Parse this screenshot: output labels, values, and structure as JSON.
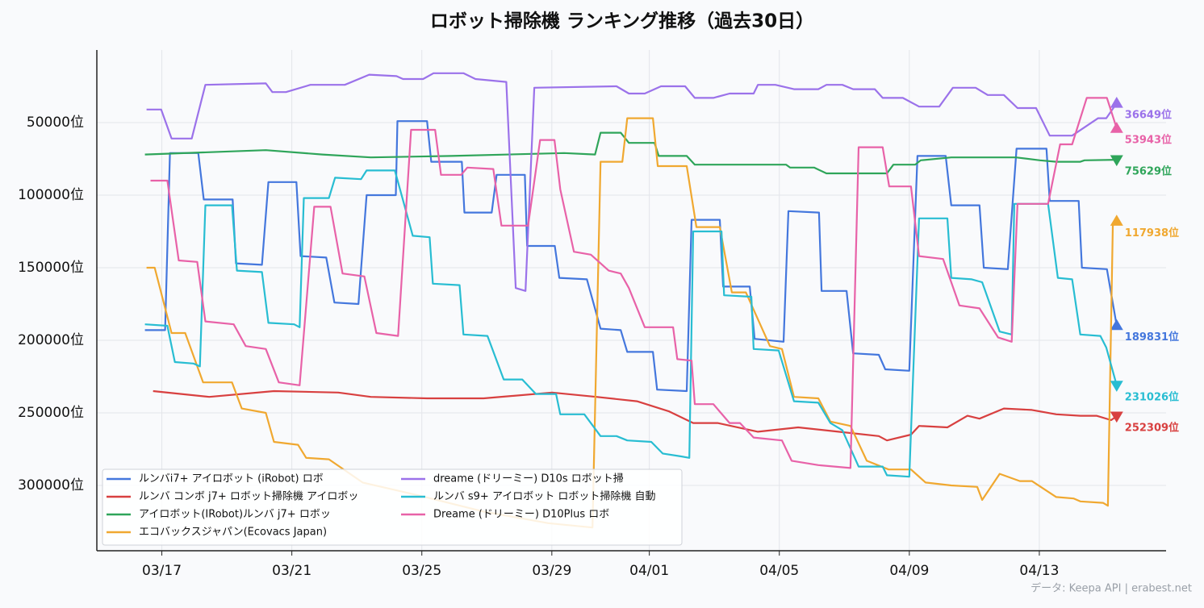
{
  "chart_data": {
    "type": "line",
    "title": "ロボット掃除機 ランキング推移（過去30日）",
    "footer": "データ: Keepa API | erabest.net",
    "xlim": [
      15,
      47.9
    ],
    "xticks": [
      {
        "value": 17,
        "label": "03/17"
      },
      {
        "value": 21,
        "label": "03/21"
      },
      {
        "value": 25,
        "label": "03/25"
      },
      {
        "value": 29,
        "label": "03/29"
      },
      {
        "value": 32,
        "label": "04/01"
      },
      {
        "value": 36,
        "label": "04/05"
      },
      {
        "value": 40,
        "label": "04/09"
      },
      {
        "value": 44,
        "label": "04/13"
      }
    ],
    "ylim": [
      345000,
      0
    ],
    "yticks": [
      {
        "value": 50000,
        "label": "50000位"
      },
      {
        "value": 100000,
        "label": "100000位"
      },
      {
        "value": 150000,
        "label": "150000位"
      },
      {
        "value": 200000,
        "label": "200000位"
      },
      {
        "value": 250000,
        "label": "250000位"
      },
      {
        "value": 300000,
        "label": "300000位"
      }
    ],
    "grid": true,
    "legend": "lower left",
    "series": [
      {
        "name": "ルンバi7+ アイロボット (iRobot) ロボ",
        "color": "#4477dd",
        "end_label": "189831位",
        "x": [
          16.48,
          17.1,
          17.25,
          18.12,
          18.29,
          19.18,
          19.28,
          20.08,
          20.28,
          21.14,
          21.27,
          22.06,
          22.31,
          23.05,
          23.3,
          24.2,
          24.25,
          25.16,
          25.29,
          26.23,
          26.31,
          27.15,
          27.3,
          28.17,
          28.24,
          29.09,
          29.23,
          30.08,
          30.5,
          31.12,
          31.32,
          32.11,
          32.24,
          33.15,
          33.3,
          34.17,
          34.27,
          35.09,
          35.24,
          36.13,
          36.28,
          37.22,
          37.3,
          38.07,
          38.27,
          39.06,
          39.26,
          40.0,
          40.25,
          41.12,
          41.29,
          42.16,
          42.29,
          43.03,
          43.3,
          44.22,
          44.32,
          45.21,
          45.31,
          46.08,
          46.38
        ],
        "values": [
          193000,
          193000,
          71000,
          71000,
          103000,
          103000,
          147000,
          148000,
          91000,
          91000,
          142000,
          143000,
          174000,
          175000,
          100000,
          100000,
          49000,
          49000,
          77000,
          77000,
          112000,
          112000,
          86000,
          86000,
          135000,
          135000,
          157000,
          158000,
          192000,
          193000,
          208000,
          208000,
          234000,
          235000,
          117000,
          117000,
          163000,
          163000,
          199000,
          201000,
          111000,
          112000,
          166000,
          166000,
          209000,
          210000,
          220000,
          221000,
          73000,
          73000,
          107000,
          107000,
          150000,
          151000,
          68000,
          68000,
          104000,
          104000,
          150000,
          151000,
          189831
        ]
      },
      {
        "name": "ルンバ コンボ j7+ ロボット掃除機 アイロボッ",
        "color": "#d84040",
        "end_label": "252309位",
        "x": [
          16.73,
          18.46,
          20.45,
          22.43,
          23.43,
          25.16,
          26.9,
          29.01,
          30.37,
          31.62,
          32.61,
          33.35,
          34.1,
          35.34,
          36.58,
          37.82,
          39.06,
          39.31,
          40.05,
          40.3,
          41.17,
          41.79,
          42.16,
          42.91,
          43.77,
          44.52,
          45.26,
          45.76,
          46.21,
          46.38
        ],
        "values": [
          235000,
          239000,
          235000,
          236000,
          239000,
          240000,
          240000,
          236000,
          239000,
          242000,
          249000,
          257000,
          257000,
          263000,
          260000,
          263000,
          266000,
          269000,
          265000,
          259000,
          260000,
          252000,
          254000,
          247000,
          248000,
          251000,
          252000,
          252000,
          255000,
          252309
        ]
      },
      {
        "name": "アイロボット(IRobot)ルンバ j7+ ロボッ",
        "color": "#2fa55a",
        "end_label": "75629位",
        "x": [
          16.48,
          20.2,
          21.94,
          23.43,
          25.91,
          29.38,
          30.33,
          30.5,
          31.12,
          31.37,
          32.16,
          32.29,
          33.15,
          33.4,
          34.84,
          36.21,
          36.33,
          37.07,
          37.45,
          39.31,
          39.51,
          40.18,
          40.35,
          41.29,
          43.28,
          44.02,
          44.52,
          45.26,
          45.39,
          46.38
        ],
        "values": [
          72000,
          69000,
          72000,
          74000,
          73000,
          71000,
          72000,
          57000,
          57000,
          64000,
          64000,
          73000,
          73000,
          79000,
          79000,
          79000,
          81000,
          81000,
          85000,
          85000,
          79000,
          79000,
          76000,
          74000,
          74000,
          76000,
          77000,
          77000,
          76000,
          75629
        ]
      },
      {
        "name": "エコバックスジャパン(Ecovacs Japan)",
        "color": "#f0a830",
        "end_label": "117938位",
        "x": [
          16.53,
          16.78,
          17.3,
          17.72,
          18.27,
          19.16,
          19.46,
          20.2,
          20.45,
          21.19,
          21.44,
          22.14,
          23.18,
          24.92,
          26.9,
          28.89,
          30.25,
          30.5,
          31.17,
          31.32,
          32.11,
          32.26,
          33.15,
          33.45,
          34.17,
          34.54,
          34.97,
          35.71,
          36.08,
          36.45,
          37.2,
          37.57,
          38.19,
          38.69,
          39.36,
          40.05,
          40.5,
          41.29,
          42.09,
          42.24,
          42.78,
          43.4,
          43.77,
          44.52,
          45.06,
          45.26,
          45.96,
          46.11,
          46.26,
          46.38
        ],
        "values": [
          150000,
          150000,
          195000,
          195000,
          229000,
          229000,
          247000,
          250000,
          270000,
          272000,
          281000,
          282000,
          298000,
          307000,
          318000,
          326000,
          329000,
          77000,
          77000,
          47000,
          47000,
          80000,
          80000,
          122000,
          122000,
          167000,
          167000,
          204000,
          206000,
          239000,
          240000,
          256000,
          259000,
          283000,
          289000,
          289000,
          298000,
          300000,
          301000,
          310000,
          292000,
          297000,
          297000,
          308000,
          309000,
          311000,
          312000,
          314000,
          121000,
          117938
        ]
      },
      {
        "name": "dreame (ドリーミー) D10s ロボット掃",
        "color": "#9b72ea",
        "end_label": "36649位",
        "x": [
          16.53,
          16.98,
          17.3,
          17.92,
          18.34,
          20.2,
          20.4,
          20.82,
          21.57,
          22.63,
          23.38,
          24.22,
          24.42,
          25.04,
          25.36,
          26.28,
          26.65,
          27.6,
          27.89,
          28.19,
          28.46,
          30.99,
          31.37,
          31.86,
          32.36,
          33.1,
          33.4,
          33.97,
          34.47,
          35.21,
          35.34,
          35.88,
          36.45,
          37.2,
          37.45,
          37.94,
          38.27,
          38.94,
          39.18,
          39.8,
          40.3,
          40.92,
          41.34,
          42.04,
          42.41,
          42.91,
          43.33,
          43.9,
          44.32,
          45.01,
          45.81,
          46.06,
          46.38
        ],
        "values": [
          41000,
          41000,
          61000,
          61000,
          24000,
          23000,
          29000,
          29000,
          24000,
          24000,
          17000,
          18000,
          20000,
          20000,
          16000,
          16000,
          20000,
          22000,
          164000,
          166000,
          26000,
          25000,
          30000,
          30000,
          25000,
          25000,
          33000,
          33000,
          30000,
          30000,
          24000,
          24000,
          27000,
          27000,
          24000,
          24000,
          27000,
          27000,
          33000,
          33000,
          39000,
          39000,
          26000,
          26000,
          31000,
          31000,
          40000,
          40000,
          59000,
          59000,
          47000,
          47000,
          36649
        ]
      },
      {
        "name": "ルンバ s9+ アイロボット ロボット掃除機 自動",
        "color": "#28bdd2",
        "end_label": "231026位",
        "x": [
          16.48,
          17.17,
          17.4,
          17.97,
          18.17,
          18.34,
          19.16,
          19.31,
          20.08,
          20.28,
          21.07,
          21.24,
          21.37,
          22.14,
          22.33,
          23.13,
          23.3,
          24.17,
          24.72,
          25.24,
          25.34,
          26.16,
          26.28,
          27.02,
          27.52,
          28.09,
          28.51,
          29.13,
          29.26,
          30.0,
          30.5,
          30.99,
          31.32,
          32.06,
          32.41,
          32.98,
          33.23,
          33.35,
          34.22,
          34.3,
          35.14,
          35.21,
          35.98,
          36.45,
          37.2,
          37.57,
          37.94,
          38.44,
          39.18,
          39.31,
          40.0,
          40.3,
          41.17,
          41.29,
          41.92,
          42.24,
          42.78,
          43.15,
          43.23,
          44.27,
          44.57,
          45.01,
          45.26,
          45.88,
          46.06,
          46.38
        ],
        "values": [
          189000,
          190000,
          215000,
          216000,
          218000,
          107000,
          107000,
          152000,
          153000,
          188000,
          189000,
          191000,
          102000,
          102000,
          88000,
          89000,
          83000,
          83000,
          128000,
          129000,
          161000,
          162000,
          196000,
          197000,
          227000,
          227000,
          237000,
          237000,
          251000,
          251000,
          266000,
          266000,
          269000,
          270000,
          278000,
          280000,
          281000,
          125000,
          125000,
          169000,
          170000,
          206000,
          207000,
          242000,
          243000,
          257000,
          262000,
          287000,
          287000,
          293000,
          294000,
          116000,
          116000,
          157000,
          158000,
          160000,
          194000,
          196000,
          106000,
          106000,
          157000,
          158000,
          196000,
          197000,
          205000,
          231026
        ]
      },
      {
        "name": "Dreame (ドリーミー) D10Plus ロボ",
        "color": "#e862a8",
        "end_label": "53943位",
        "x": [
          16.65,
          17.17,
          17.52,
          18.09,
          18.34,
          19.21,
          19.58,
          20.2,
          20.6,
          21.24,
          21.69,
          22.19,
          22.56,
          23.23,
          23.6,
          24.27,
          24.67,
          25.41,
          25.59,
          26.21,
          26.4,
          27.2,
          27.45,
          28.27,
          28.64,
          29.08,
          29.26,
          29.68,
          30.2,
          30.75,
          31.12,
          31.37,
          31.86,
          32.73,
          32.86,
          33.3,
          33.4,
          33.97,
          34.47,
          34.79,
          35.21,
          36.08,
          36.38,
          37.2,
          38.19,
          38.44,
          39.18,
          39.38,
          40.05,
          40.3,
          41.04,
          41.54,
          42.16,
          42.73,
          43.15,
          43.33,
          44.27,
          44.64,
          45.01,
          45.46,
          46.08,
          46.38
        ],
        "values": [
          90000,
          90000,
          145000,
          146000,
          187000,
          189000,
          204000,
          206000,
          229000,
          231000,
          108000,
          108000,
          154000,
          156000,
          195000,
          197000,
          55000,
          55000,
          86000,
          86000,
          81000,
          82000,
          121000,
          121000,
          62000,
          62000,
          96000,
          139000,
          141000,
          152000,
          154000,
          164000,
          191000,
          191000,
          213000,
          214000,
          244000,
          244000,
          257000,
          257000,
          267000,
          269000,
          283000,
          286000,
          288000,
          67000,
          67000,
          94000,
          94000,
          142000,
          144000,
          176000,
          178000,
          198000,
          201000,
          106000,
          106000,
          65000,
          65000,
          33000,
          33000,
          53943
        ]
      }
    ]
  }
}
